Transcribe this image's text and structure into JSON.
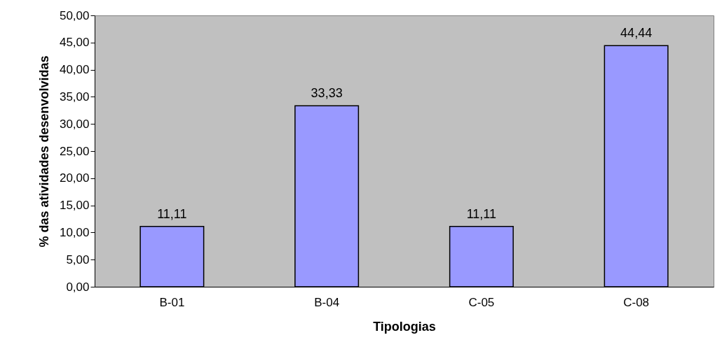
{
  "chart_data": {
    "type": "bar",
    "xlabel": "Tipologias",
    "ylabel": "% das atividades desenvolvidas",
    "categories": [
      "B-01",
      "B-04",
      "C-05",
      "C-08"
    ],
    "values": [
      11.11,
      33.33,
      11.11,
      44.44
    ],
    "value_labels": [
      "11,11",
      "33,33",
      "11,11",
      "44,44"
    ],
    "color": "#9999ff",
    "ylim": [
      0,
      50
    ],
    "yticks": [
      {
        "value": 0,
        "label": "0,00"
      },
      {
        "value": 5,
        "label": "5,00"
      },
      {
        "value": 10,
        "label": "10,00"
      },
      {
        "value": 15,
        "label": "15,00"
      },
      {
        "value": 20,
        "label": "20,00"
      },
      {
        "value": 25,
        "label": "25,00"
      },
      {
        "value": 30,
        "label": "30,00"
      },
      {
        "value": 35,
        "label": "35,00"
      },
      {
        "value": 40,
        "label": "40,00"
      },
      {
        "value": 45,
        "label": "45,00"
      },
      {
        "value": 50,
        "label": "50,00"
      }
    ],
    "grid": false
  }
}
